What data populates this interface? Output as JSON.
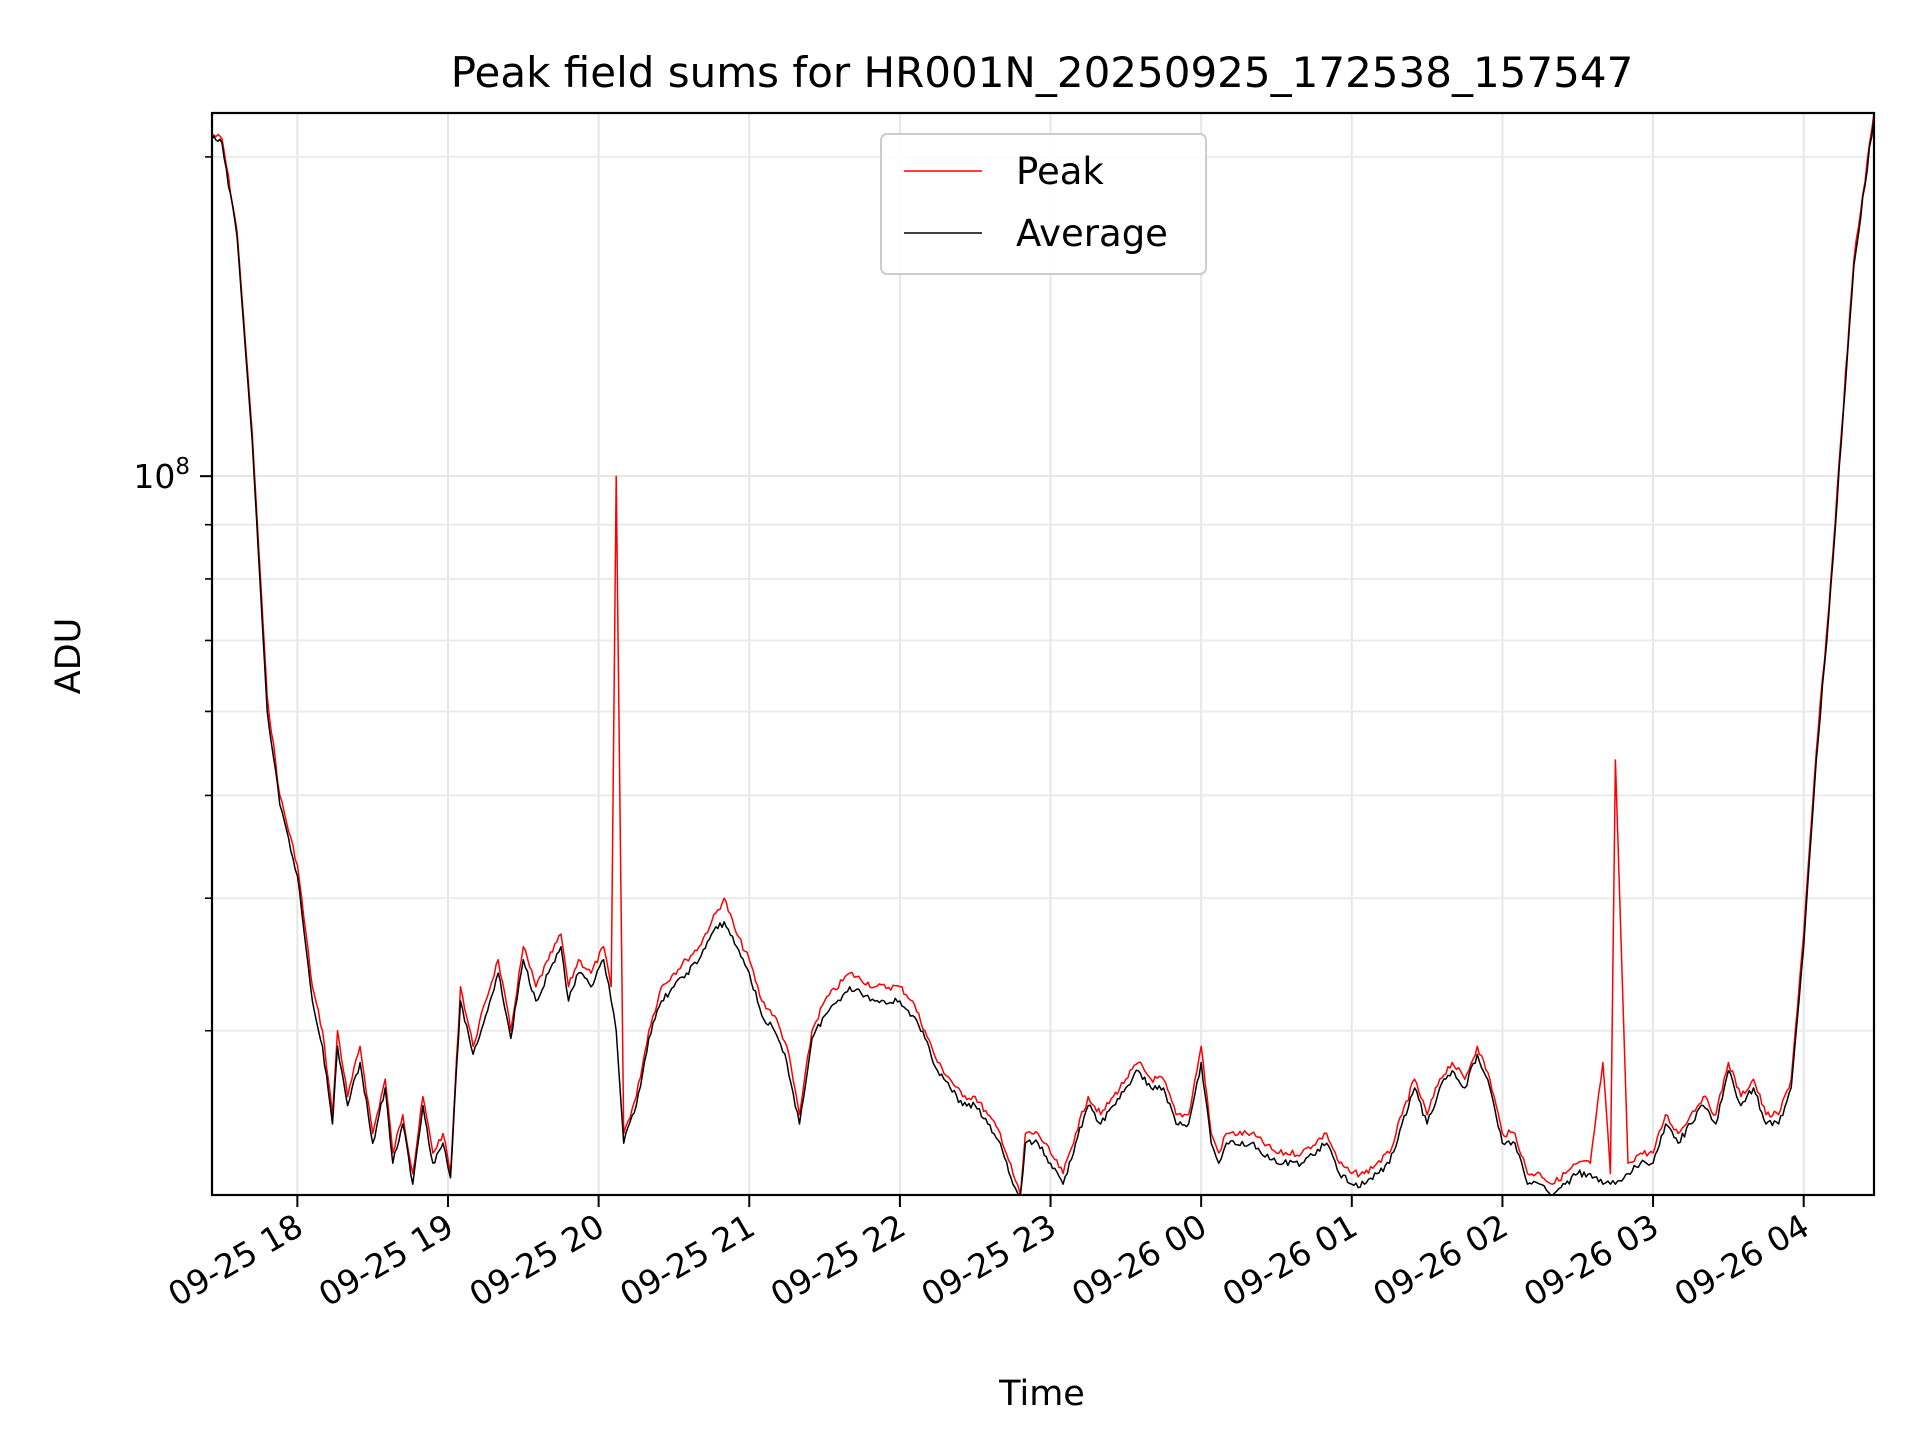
{
  "chart_data": {
    "type": "line",
    "title": "Peak field sums for HR001N_20250925_172538_157547",
    "xlabel": "Time",
    "ylabel": "ADU",
    "yscale": "log",
    "ylim": [
      21000000,
      220000000
    ],
    "xlim": [
      "2025-09-25 17:26",
      "2025-09-26 04:28"
    ],
    "xtick_labels": [
      "09-25 18",
      "09-25 19",
      "09-25 20",
      "09-25 21",
      "09-25 22",
      "09-25 23",
      "09-26 00",
      "09-26 01",
      "09-26 02",
      "09-26 03",
      "09-26 04"
    ],
    "ytick_label": {
      "base": "10",
      "exp": "8"
    },
    "grid": true,
    "legend_position": "upper center",
    "x": [
      "2025-09-25 17:26",
      "2025-09-25 17:30",
      "2025-09-25 17:36",
      "2025-09-25 17:42",
      "2025-09-25 17:48",
      "2025-09-25 17:53",
      "2025-09-25 18:00",
      "2025-09-25 18:06",
      "2025-09-25 18:10",
      "2025-09-25 18:14",
      "2025-09-25 18:16",
      "2025-09-25 18:20",
      "2025-09-25 18:25",
      "2025-09-25 18:30",
      "2025-09-25 18:35",
      "2025-09-25 18:38",
      "2025-09-25 18:42",
      "2025-09-25 18:46",
      "2025-09-25 18:50",
      "2025-09-25 18:54",
      "2025-09-25 18:58",
      "2025-09-25 19:01",
      "2025-09-25 19:05",
      "2025-09-25 19:10",
      "2025-09-25 19:15",
      "2025-09-25 19:20",
      "2025-09-25 19:25",
      "2025-09-25 19:30",
      "2025-09-25 19:35",
      "2025-09-25 19:40",
      "2025-09-25 19:45",
      "2025-09-25 19:48",
      "2025-09-25 19:52",
      "2025-09-25 19:57",
      "2025-09-25 20:02",
      "2025-09-25 20:05",
      "2025-09-25 20:07",
      "2025-09-25 20:10",
      "2025-09-25 20:15",
      "2025-09-25 20:20",
      "2025-09-25 20:25",
      "2025-09-25 20:30",
      "2025-09-25 20:35",
      "2025-09-25 20:40",
      "2025-09-25 20:45",
      "2025-09-25 20:50",
      "2025-09-25 20:55",
      "2025-09-25 21:00",
      "2025-09-25 21:05",
      "2025-09-25 21:10",
      "2025-09-25 21:15",
      "2025-09-25 21:20",
      "2025-09-25 21:25",
      "2025-09-25 21:30",
      "2025-09-25 21:40",
      "2025-09-25 21:50",
      "2025-09-25 22:00",
      "2025-09-25 22:05",
      "2025-09-25 22:10",
      "2025-09-25 22:15",
      "2025-09-25 22:20",
      "2025-09-25 22:25",
      "2025-09-25 22:30",
      "2025-09-25 22:35",
      "2025-09-25 22:40",
      "2025-09-25 22:45",
      "2025-09-25 22:48",
      "2025-09-25 22:50",
      "2025-09-25 22:55",
      "2025-09-25 23:00",
      "2025-09-25 23:05",
      "2025-09-25 23:10",
      "2025-09-25 23:15",
      "2025-09-25 23:20",
      "2025-09-25 23:25",
      "2025-09-25 23:30",
      "2025-09-25 23:35",
      "2025-09-25 23:40",
      "2025-09-25 23:45",
      "2025-09-25 23:50",
      "2025-09-25 23:55",
      "2025-09-26 00:00",
      "2025-09-26 00:04",
      "2025-09-26 00:07",
      "2025-09-26 00:10",
      "2025-09-26 00:20",
      "2025-09-26 00:30",
      "2025-09-26 00:40",
      "2025-09-26 00:50",
      "2025-09-26 00:55",
      "2025-09-26 01:00",
      "2025-09-26 01:05",
      "2025-09-26 01:10",
      "2025-09-26 01:15",
      "2025-09-26 01:20",
      "2025-09-26 01:25",
      "2025-09-26 01:30",
      "2025-09-26 01:35",
      "2025-09-26 01:40",
      "2025-09-26 01:45",
      "2025-09-26 01:50",
      "2025-09-26 01:55",
      "2025-09-26 02:00",
      "2025-09-26 02:05",
      "2025-09-26 02:10",
      "2025-09-26 02:15",
      "2025-09-26 02:20",
      "2025-09-26 02:25",
      "2025-09-26 02:30",
      "2025-09-26 02:35",
      "2025-09-26 02:40",
      "2025-09-26 02:43",
      "2025-09-26 02:45",
      "2025-09-26 02:50",
      "2025-09-26 02:55",
      "2025-09-26 03:00",
      "2025-09-26 03:05",
      "2025-09-26 03:10",
      "2025-09-26 03:15",
      "2025-09-26 03:20",
      "2025-09-26 03:25",
      "2025-09-26 03:30",
      "2025-09-26 03:35",
      "2025-09-26 03:40",
      "2025-09-26 03:45",
      "2025-09-26 03:50",
      "2025-09-26 03:55",
      "2025-09-26 04:00",
      "2025-09-26 04:05",
      "2025-09-26 04:10",
      "2025-09-26 04:15",
      "2025-09-26 04:20",
      "2025-09-26 04:28"
    ],
    "series": [
      {
        "name": "Peak",
        "color": "#ff0000",
        "values": [
          210000000,
          208000000,
          170000000,
          110000000,
          62000000,
          50000000,
          43000000,
          33000000,
          30000000,
          25000000,
          30000000,
          26000000,
          29000000,
          24000000,
          27000000,
          23000000,
          25000000,
          22000000,
          26000000,
          23000000,
          24000000,
          22000000,
          33000000,
          29000000,
          32000000,
          35000000,
          30000000,
          36000000,
          33000000,
          35000000,
          37000000,
          33000000,
          35000000,
          34000000,
          36000000,
          33000000,
          100000000,
          24000000,
          26000000,
          30000000,
          33000000,
          34000000,
          35000000,
          36000000,
          38000000,
          40000000,
          37000000,
          35000000,
          32000000,
          31000000,
          29000000,
          25000000,
          30000000,
          32000000,
          34000000,
          33000000,
          33000000,
          32000000,
          30000000,
          28000000,
          27000000,
          26000000,
          26000000,
          25000000,
          24000000,
          22000000,
          21000000,
          24000000,
          24000000,
          23000000,
          22000000,
          24000000,
          26000000,
          25000000,
          26000000,
          27000000,
          28000000,
          27000000,
          27000000,
          25000000,
          25000000,
          29000000,
          24000000,
          23000000,
          24000000,
          24000000,
          23000000,
          23000000,
          24000000,
          22500000,
          22000000,
          22000000,
          22500000,
          23000000,
          25000000,
          27000000,
          25000000,
          27000000,
          28000000,
          27000000,
          29000000,
          27000000,
          24000000,
          24000000,
          22000000,
          22000000,
          21500000,
          22000000,
          22500000,
          22500000,
          28000000,
          22000000,
          54000000,
          22500000,
          23000000,
          23000000,
          25000000,
          24000000,
          25000000,
          26000000,
          25000000,
          28000000,
          26000000,
          27000000,
          25000000,
          25000000,
          27000000,
          37000000,
          55000000,
          75000000,
          110000000,
          160000000,
          220000000
        ]
      },
      {
        "name": "Average",
        "color": "#000000",
        "values": [
          208000000,
          206000000,
          168000000,
          108000000,
          60000000,
          49000000,
          42000000,
          32000000,
          29000000,
          24500000,
          29000000,
          25500000,
          28000000,
          23500000,
          26500000,
          22500000,
          24500000,
          21500000,
          25500000,
          22500000,
          23500000,
          21800000,
          32000000,
          28500000,
          31000000,
          34000000,
          29500000,
          35000000,
          32000000,
          34000000,
          36000000,
          32000000,
          34000000,
          33000000,
          35000000,
          32000000,
          30000000,
          23500000,
          25500000,
          29500000,
          32000000,
          33000000,
          34000000,
          35000000,
          37000000,
          38000000,
          36000000,
          34000000,
          31000000,
          30000000,
          28000000,
          24500000,
          29500000,
          31000000,
          33000000,
          32000000,
          32000000,
          31000000,
          29500000,
          27500000,
          26500000,
          25500000,
          25500000,
          24500000,
          23500000,
          21500000,
          20800000,
          23500000,
          23500000,
          22500000,
          21500000,
          23500000,
          25500000,
          24500000,
          25500000,
          26500000,
          27500000,
          26500000,
          26500000,
          24500000,
          24500000,
          28000000,
          23500000,
          22500000,
          23500000,
          23500000,
          22500000,
          22500000,
          23500000,
          22000000,
          21500000,
          21500000,
          22000000,
          22500000,
          24500000,
          26500000,
          24500000,
          26500000,
          27500000,
          26500000,
          28500000,
          26500000,
          23500000,
          23500000,
          21500000,
          21500000,
          21000000,
          21500000,
          22000000,
          22000000,
          21500000,
          21500000,
          21500000,
          22000000,
          22500000,
          22500000,
          24500000,
          23500000,
          24500000,
          25500000,
          24500000,
          27500000,
          25500000,
          26500000,
          24500000,
          24500000,
          26500000,
          36000000,
          54000000,
          74000000,
          108000000,
          158000000,
          218000000
        ]
      }
    ]
  }
}
